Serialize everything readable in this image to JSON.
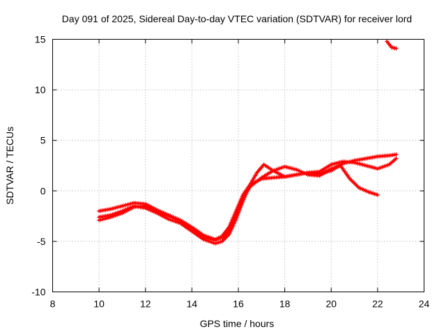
{
  "chart_data": {
    "type": "line",
    "title": "Day 091 of 2025, Sidereal Day-to-day VTEC variation (SDTVAR) for receiver lord",
    "xlabel": "GPS time / hours",
    "ylabel": "SDTVAR / TECUs",
    "xlim": [
      8,
      24
    ],
    "ylim": [
      -10,
      15
    ],
    "xticks": [
      8,
      10,
      12,
      14,
      16,
      18,
      20,
      22,
      24
    ],
    "yticks": [
      -10,
      -5,
      0,
      5,
      10,
      15
    ],
    "grid": true,
    "legend": "none",
    "marker": "plus",
    "color": "#ff0000",
    "series": [
      {
        "name": "track-1",
        "x": [
          10.0,
          10.5,
          11.0,
          11.5,
          12.0,
          12.5,
          13.0,
          13.5,
          14.0,
          14.5,
          15.0,
          15.3,
          15.6,
          15.9,
          16.2,
          16.5,
          17.0,
          17.5,
          18.0,
          18.5,
          19.0,
          19.5,
          20.0,
          20.5,
          21.0,
          21.5,
          22.0,
          22.5,
          22.8
        ],
        "y": [
          -2.0,
          -1.8,
          -1.5,
          -1.2,
          -1.3,
          -1.9,
          -2.4,
          -2.9,
          -3.6,
          -4.4,
          -4.8,
          -4.5,
          -3.6,
          -2.0,
          -0.4,
          0.6,
          1.2,
          1.3,
          1.4,
          1.6,
          1.8,
          1.9,
          2.6,
          2.9,
          2.8,
          2.5,
          2.2,
          2.6,
          3.2
        ]
      },
      {
        "name": "track-2",
        "x": [
          10.0,
          10.5,
          11.0,
          11.5,
          12.0,
          12.5,
          13.0,
          13.5,
          14.0,
          14.5,
          15.0,
          15.3,
          15.6,
          15.9,
          16.2,
          16.5,
          16.8,
          17.1,
          17.5,
          18.0,
          18.5,
          19.0,
          19.5,
          20.0,
          20.5,
          21.0,
          21.5,
          22.0,
          22.5,
          22.8
        ],
        "y": [
          -2.6,
          -2.4,
          -2.0,
          -1.5,
          -1.7,
          -2.2,
          -2.8,
          -3.2,
          -4.0,
          -4.8,
          -5.2,
          -5.0,
          -4.3,
          -2.8,
          -1.0,
          0.6,
          1.8,
          2.6,
          2.0,
          1.4,
          1.6,
          1.8,
          1.7,
          2.0,
          2.7,
          3.0,
          3.2,
          3.4,
          3.5,
          3.6
        ]
      },
      {
        "name": "track-3",
        "x": [
          10.0,
          10.5,
          11.0,
          11.5,
          12.0,
          12.5,
          13.0,
          13.5,
          14.0,
          14.5,
          15.0,
          15.3,
          15.6,
          15.9,
          16.2,
          16.5,
          17.0,
          17.5,
          18.0,
          18.5,
          19.0,
          19.5,
          20.0,
          20.4,
          20.8,
          21.2,
          21.6,
          22.0
        ],
        "y": [
          -2.9,
          -2.6,
          -2.2,
          -1.6,
          -1.5,
          -2.0,
          -2.5,
          -3.0,
          -3.8,
          -4.6,
          -4.9,
          -4.6,
          -3.9,
          -2.5,
          -0.8,
          0.4,
          1.3,
          2.0,
          2.4,
          2.1,
          1.6,
          1.5,
          2.2,
          2.5,
          1.2,
          0.3,
          -0.1,
          -0.4
        ]
      },
      {
        "name": "track-4",
        "x": [
          22.4,
          22.6,
          22.8
        ],
        "y": [
          14.8,
          14.2,
          14.1
        ]
      }
    ]
  }
}
